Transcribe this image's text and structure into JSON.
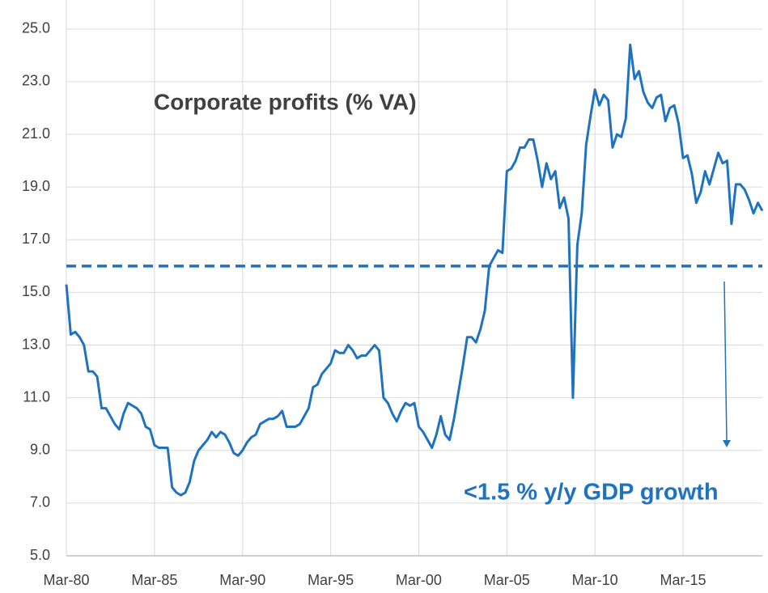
{
  "chart_data": {
    "type": "line",
    "title": "Corporate profits (% VA)",
    "annotation": "<1.5 % y/y GDP growth",
    "categories": [
      "Mar-80",
      null,
      null,
      null,
      null,
      null,
      null,
      null,
      null,
      null,
      null,
      null,
      null,
      null,
      null,
      null,
      null,
      null,
      null,
      null,
      "Mar-85",
      null,
      null,
      null,
      null,
      null,
      null,
      null,
      null,
      null,
      null,
      null,
      null,
      null,
      null,
      null,
      null,
      null,
      null,
      null,
      "Mar-90",
      null,
      null,
      null,
      null,
      null,
      null,
      null,
      null,
      null,
      null,
      null,
      null,
      null,
      null,
      null,
      null,
      null,
      null,
      null,
      "Mar-95",
      null,
      null,
      null,
      null,
      null,
      null,
      null,
      null,
      null,
      null,
      null,
      null,
      null,
      null,
      null,
      null,
      null,
      null,
      null,
      "Mar-00",
      null,
      null,
      null,
      null,
      null,
      null,
      null,
      null,
      null,
      null,
      null,
      null,
      null,
      null,
      null,
      null,
      null,
      null,
      null,
      "Mar-05",
      null,
      null,
      null,
      null,
      null,
      null,
      null,
      null,
      null,
      null,
      null,
      null,
      null,
      null,
      null,
      null,
      null,
      null,
      null,
      "Mar-10",
      null,
      null,
      null,
      null,
      null,
      null,
      null,
      null,
      null,
      null,
      null,
      null,
      null,
      null,
      null,
      null,
      null,
      null,
      null,
      "Mar-15",
      null,
      null,
      null,
      null,
      null,
      null,
      null,
      null,
      null,
      null,
      null,
      null,
      null,
      null,
      null,
      null,
      null,
      null
    ],
    "series": [
      {
        "color": "#1f72c0",
        "values": [
          15.3,
          13.4,
          13.5,
          13.3,
          13.0,
          12.0,
          12.0,
          11.8,
          10.6,
          10.6,
          10.3,
          10.0,
          9.8,
          10.4,
          10.8,
          10.7,
          10.6,
          10.4,
          9.9,
          9.8,
          9.2,
          9.1,
          9.1,
          9.1,
          7.6,
          7.4,
          7.3,
          7.4,
          7.8,
          8.6,
          9.0,
          9.2,
          9.4,
          9.7,
          9.5,
          9.7,
          9.6,
          9.3,
          8.9,
          8.8,
          9.0,
          9.3,
          9.5,
          9.6,
          10.0,
          10.1,
          10.2,
          10.2,
          10.3,
          10.5,
          9.9,
          9.9,
          9.9,
          10.0,
          10.3,
          10.6,
          11.4,
          11.5,
          11.9,
          12.1,
          12.3,
          12.8,
          12.7,
          12.7,
          13.0,
          12.8,
          12.5,
          12.6,
          12.6,
          12.8,
          13.0,
          12.8,
          11.0,
          10.8,
          10.4,
          10.1,
          10.5,
          10.8,
          10.7,
          10.8,
          9.9,
          9.7,
          9.4,
          9.1,
          9.6,
          10.3,
          9.6,
          9.4,
          10.2,
          11.2,
          12.2,
          13.3,
          13.3,
          13.1,
          13.6,
          14.3,
          16.0,
          16.3,
          16.6,
          16.5,
          19.6,
          19.7,
          20.0,
          20.5,
          20.5,
          20.8,
          20.8,
          20.0,
          19.0,
          19.9,
          19.3,
          19.6,
          18.2,
          18.6,
          17.8,
          11.0,
          16.8,
          18.0,
          20.6,
          21.7,
          22.7,
          22.1,
          22.5,
          22.3,
          20.5,
          21.0,
          20.9,
          21.6,
          24.4,
          23.1,
          23.4,
          22.6,
          22.2,
          22.0,
          22.4,
          22.5,
          21.5,
          22.0,
          22.1,
          21.4,
          20.1,
          20.2,
          19.5,
          18.4,
          18.8,
          19.6,
          19.1,
          19.7,
          20.3,
          19.9,
          20.0,
          17.6,
          19.1,
          19.1,
          18.9,
          18.5,
          18.0,
          18.4,
          18.1
        ]
      }
    ],
    "reference_line": {
      "value": 16.0,
      "color": "#1f72c0",
      "dashed": true
    },
    "ylim": [
      5,
      26.1
    ],
    "yticks": [
      {
        "value": 5,
        "label": "5.0"
      },
      {
        "value": 7,
        "label": "7.0"
      },
      {
        "value": 9,
        "label": "9.0"
      },
      {
        "value": 11,
        "label": "11.0"
      },
      {
        "value": 13,
        "label": "13.0"
      },
      {
        "value": 15,
        "label": "15.0"
      },
      {
        "value": 17,
        "label": "17.0"
      },
      {
        "value": 19,
        "label": "19.0"
      },
      {
        "value": 21,
        "label": "21.0"
      },
      {
        "value": 23,
        "label": "23.0"
      },
      {
        "value": 25,
        "label": "25.0"
      }
    ],
    "grid": true
  }
}
